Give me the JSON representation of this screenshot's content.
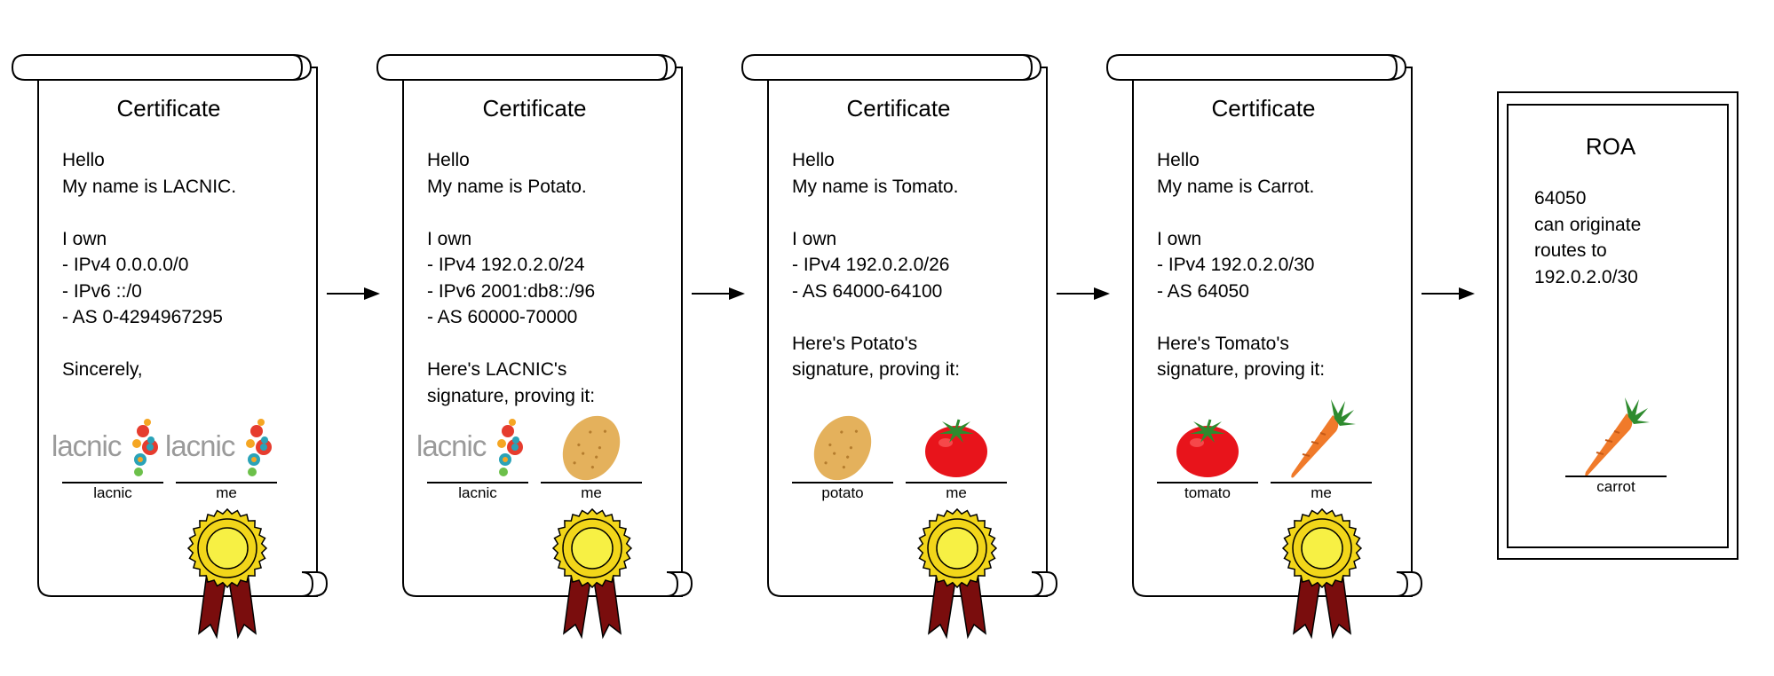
{
  "certificates": [
    {
      "title": "Certificate",
      "body": "Hello\nMy name is LACNIC.\n\nI own\n- IPv4 0.0.0.0/0\n- IPv6 ::/0\n- AS 0-4294967295\n\nSincerely,",
      "signatures": [
        {
          "caption": "lacnic",
          "icon": "lacnic-logo",
          "logo_text": "lacnic"
        },
        {
          "caption": "me",
          "icon": "lacnic-logo",
          "logo_text": "lacnic"
        }
      ],
      "seal_icon": "award-ribbon-icon"
    },
    {
      "title": "Certificate",
      "body": "Hello\nMy name is Potato.\n\nI own\n- IPv4 192.0.2.0/24\n- IPv6 2001:db8::/96\n- AS 60000-70000\n\nHere's LACNIC's\nsignature, proving it:",
      "signatures": [
        {
          "caption": "lacnic",
          "icon": "lacnic-logo",
          "logo_text": "lacnic"
        },
        {
          "caption": "me",
          "icon": "potato-icon"
        }
      ],
      "seal_icon": "award-ribbon-icon"
    },
    {
      "title": "Certificate",
      "body": "Hello\nMy name is Tomato.\n\nI own\n- IPv4 192.0.2.0/26\n- AS 64000-64100\n\nHere's Potato's\nsignature, proving it:",
      "signatures": [
        {
          "caption": "potato",
          "icon": "potato-icon"
        },
        {
          "caption": "me",
          "icon": "tomato-icon"
        }
      ],
      "seal_icon": "award-ribbon-icon"
    },
    {
      "title": "Certificate",
      "body": "Hello\nMy name is Carrot.\n\nI own\n- IPv4 192.0.2.0/30\n- AS 64050\n\nHere's Tomato's\nsignature, proving it:",
      "signatures": [
        {
          "caption": "tomato",
          "icon": "tomato-icon"
        },
        {
          "caption": "me",
          "icon": "carrot-icon"
        }
      ],
      "seal_icon": "award-ribbon-icon"
    }
  ],
  "roa": {
    "title": "ROA",
    "body": "64050\ncan originate\nroutes to\n192.0.2.0/30",
    "signature": {
      "caption": "carrot",
      "icon": "carrot-icon"
    }
  },
  "colors": {
    "seal_gold": "#f2d61a",
    "seal_ribbon": "#7a0d0d",
    "tomato_red": "#e8141b",
    "potato_tan": "#e4b15c",
    "carrot_orange": "#f07a2a",
    "leaf_green": "#2e8b2e",
    "lacnic_gray": "#9a9a9a"
  }
}
